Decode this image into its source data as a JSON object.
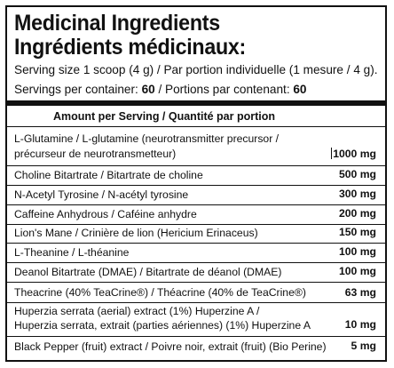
{
  "title_en": "Medicinal Ingredients",
  "title_fr": "Ingrédients médicinaux:",
  "serving_size": {
    "label": "Serving size 1 scoop (4 g) / Par portion individuelle (1 mesure / 4 g)."
  },
  "servings": {
    "label": "Servings per container: ",
    "value": "60",
    "label_fr": " / Portions par contenant: ",
    "value_fr": "60"
  },
  "column_header": "Amount per Serving / Quantité par portion",
  "ingredients": [
    {
      "line1": "L-Glutamine / L-glutamine (neurotransmitter precursor /",
      "line2": "précurseur de neurotransmetteur)",
      "amount": "1000 mg"
    },
    {
      "line1": "Choline Bitartrate / Bitartrate de choline",
      "amount": "500 mg"
    },
    {
      "line1": "N-Acetyl Tyrosine / N-acétyl tyrosine",
      "amount": "300 mg"
    },
    {
      "line1": "Caffeine Anhydrous / Caféine anhydre",
      "amount": "200 mg"
    },
    {
      "line1": "Lion's Mane / Crinière de lion (Hericium Erinaceus)",
      "amount": "150 mg"
    },
    {
      "line1": "L-Theanine / L-théanine",
      "amount": "100 mg"
    },
    {
      "line1": "Deanol Bitartrate (DMAE) / Bitartrate de déanol (DMAE)",
      "amount": "100 mg"
    },
    {
      "line1": "Theacrine (40% TeaCrine®) / Théacrine (40% de TeaCrine®)",
      "amount": "63 mg"
    },
    {
      "line1": "Huperzia serrata (aerial) extract (1%) Huperzine A /",
      "line2": "Huperzia serrata, extrait (parties aériennes) (1%) Huperzine A",
      "amount": "10 mg"
    },
    {
      "line1": "Black Pepper (fruit) extract / Poivre noir, extrait (fruit) (Bio Perine)",
      "amount": "5 mg"
    }
  ]
}
